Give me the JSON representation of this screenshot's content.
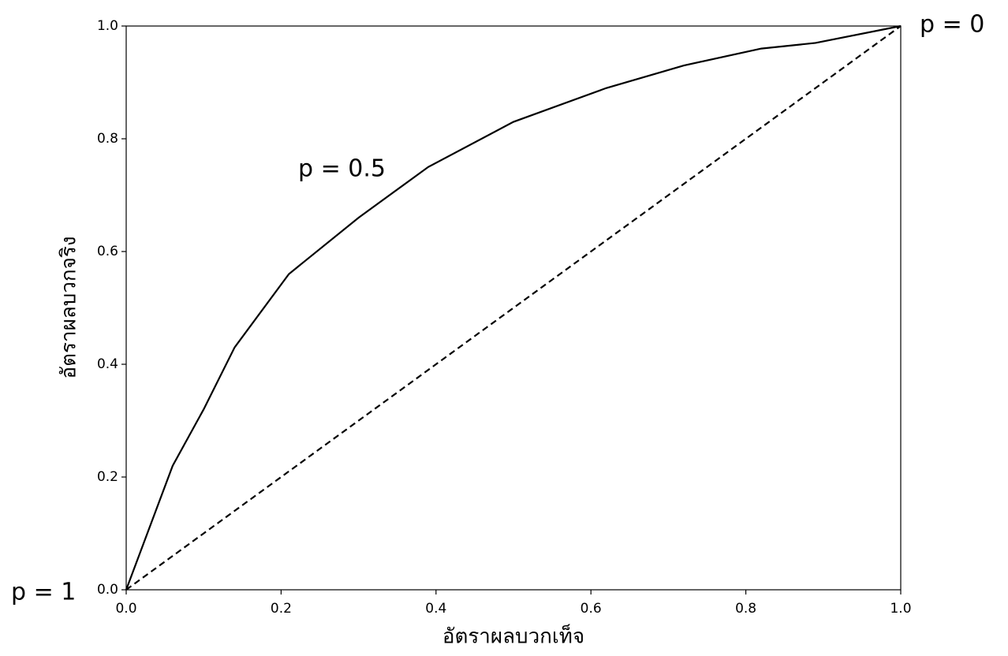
{
  "chart_data": {
    "type": "line",
    "xlabel": "อัตราผลบวกเท็จ",
    "ylabel": "อัตราผลบวกจริง",
    "xlim": [
      0,
      1
    ],
    "ylim": [
      0,
      1
    ],
    "xticks": [
      {
        "value": 0,
        "label": "0.0"
      },
      0.2,
      0.4,
      0.6,
      0.8,
      {
        "value": 1,
        "label": "1.0"
      }
    ],
    "yticks": [
      {
        "value": 0,
        "label": "0.0"
      },
      0.2,
      0.4,
      0.6,
      0.8,
      {
        "value": 1,
        "label": "1.0"
      }
    ],
    "series": [
      {
        "color": "#000000",
        "dashed": false,
        "x": [
          0,
          0.06,
          0.1,
          0.14,
          0.21,
          0.3,
          0.39,
          0.5,
          0.62,
          0.72,
          0.82,
          0.89,
          1
        ],
        "values": [
          0,
          0.22,
          0.32,
          0.43,
          0.56,
          0.66,
          0.75,
          0.83,
          0.89,
          0.93,
          0.96,
          0.97,
          1
        ]
      },
      {
        "color": "#000000",
        "dashed": true,
        "x": [
          0,
          1
        ],
        "values": [
          0,
          1
        ]
      }
    ],
    "annotations": [
      "p = 1",
      "p = 0.5",
      "p = 0"
    ]
  }
}
